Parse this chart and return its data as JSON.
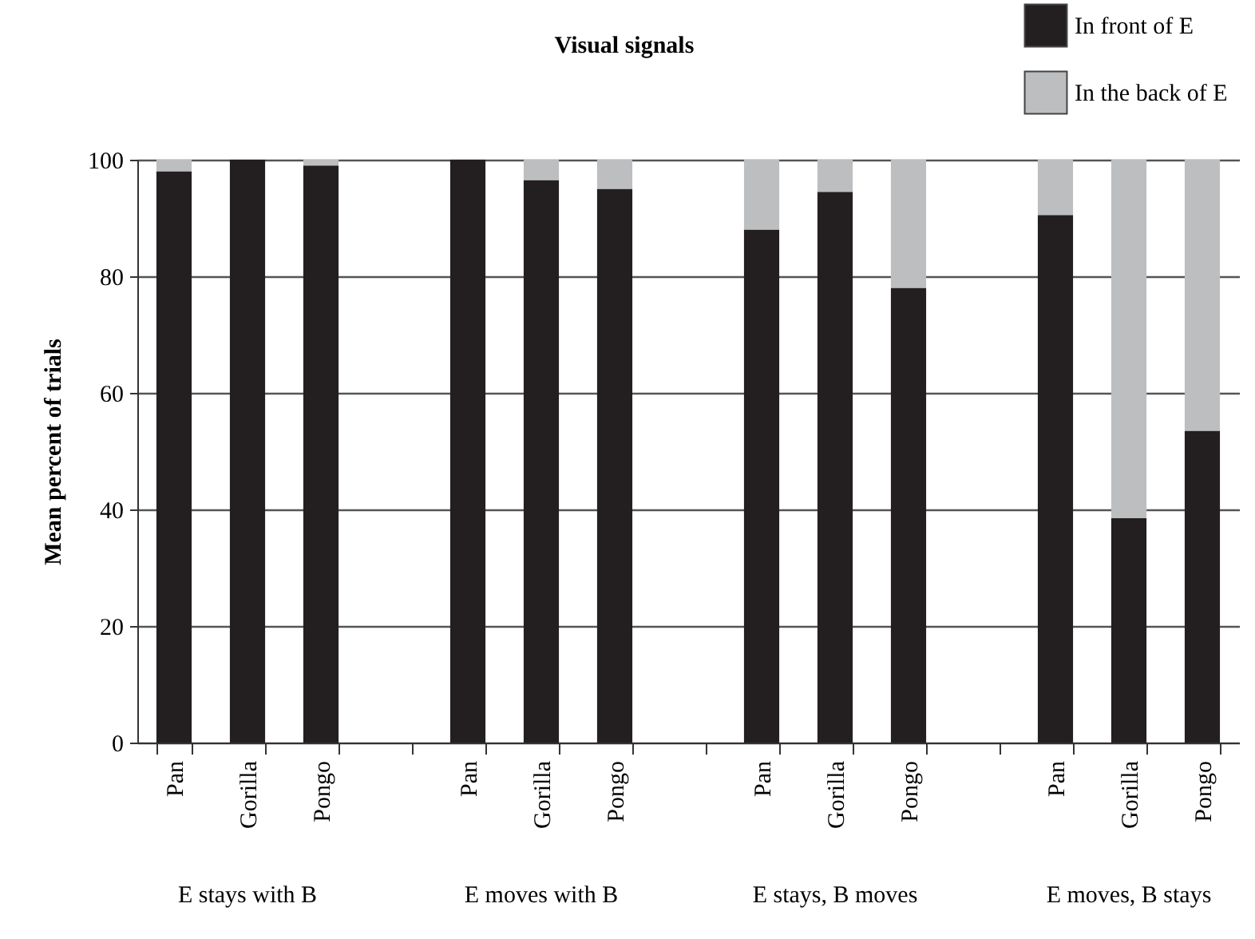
{
  "chart_data": {
    "type": "bar",
    "title": "Visual signals",
    "ylabel": "Mean percent of trials",
    "stacked": true,
    "categories": [
      "Pan",
      "Gorilla",
      "Pongo",
      null,
      "Pan",
      "Gorilla",
      "Pongo",
      null,
      "Pan",
      "Gorilla",
      "Pongo",
      null,
      "Pan",
      "Gorilla",
      "Pongo"
    ],
    "series": [
      {
        "name": "In front of E",
        "color": "#231f20",
        "values": [
          98,
          100,
          99,
          null,
          100,
          96.5,
          95,
          null,
          88,
          94.5,
          78,
          null,
          90.5,
          38.5,
          53.5
        ]
      },
      {
        "name": "In the back of E",
        "color": "#bcbec0",
        "values": [
          2,
          0,
          1,
          null,
          0,
          3.5,
          5,
          null,
          12,
          5.5,
          22,
          null,
          9.5,
          61.5,
          46.5
        ]
      }
    ],
    "annotations": [
      "E stays with B",
      "E moves with B",
      "E stays, B moves",
      "E moves, B stays"
    ],
    "ylim": [
      0,
      100
    ],
    "yticks": [
      0,
      20,
      40,
      60,
      80,
      100
    ],
    "grid": "y",
    "legend": "top right"
  }
}
